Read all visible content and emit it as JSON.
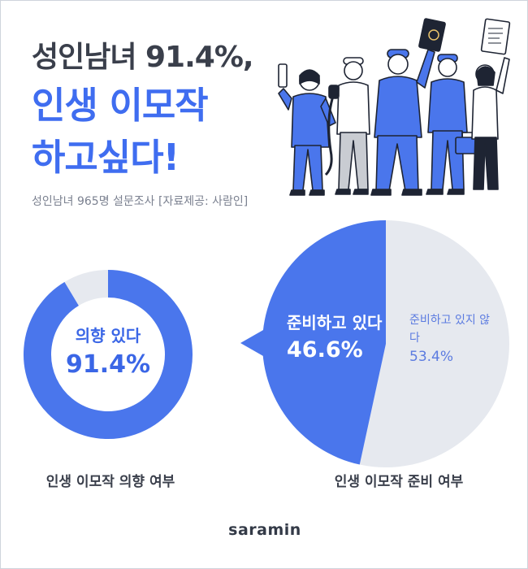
{
  "title": {
    "line1": "성인남녀 91.4%,",
    "line2": "인생 이모작",
    "line3": "하고싶다!"
  },
  "subtitle": "성인남녀 965명 설문조사 [자료제공: 사람인]",
  "colors": {
    "primary": "#4a76ec",
    "light": "#e6e9ef",
    "title_dark": "#3a3f4b"
  },
  "chart_data": [
    {
      "type": "pie",
      "variant": "donut",
      "title": "인생 이모작 의향 여부",
      "slices": [
        {
          "label": "의향 있다",
          "value": 91.4,
          "value_text": "91.4%"
        },
        {
          "label": "",
          "value": 8.6
        }
      ]
    },
    {
      "type": "pie",
      "title": "인생 이모작 준비 여부",
      "slices": [
        {
          "label": "준비하고 있다",
          "value": 46.6,
          "value_text": "46.6%"
        },
        {
          "label": "준비하고 있지 않다",
          "value": 53.4,
          "value_text": "53.4%"
        }
      ]
    }
  ],
  "brand": "saramin"
}
